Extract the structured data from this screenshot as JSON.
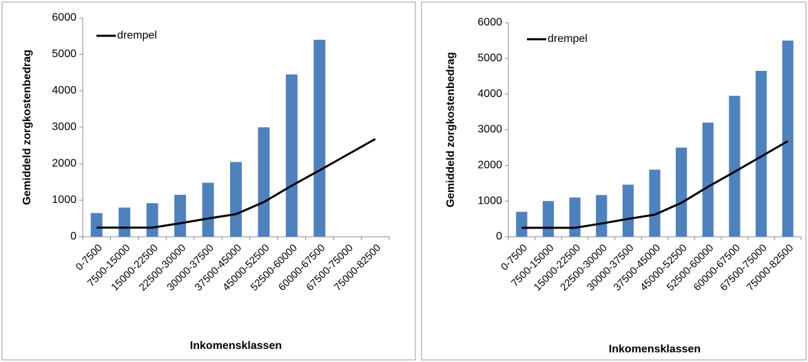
{
  "chart_data": [
    {
      "type": "bar",
      "x_label": "Inkomensklassen",
      "y_label": "Gemiddeld zorgkostenbedrag",
      "categories": [
        "0-7500",
        "7500-15000",
        "15000-22500",
        "22500-30000",
        "30000-37500",
        "37500-45000",
        "45000-52500",
        "52500-60000",
        "60000-67500",
        "67500-75000",
        "75000-82500"
      ],
      "series": [
        {
          "type": "bar",
          "color": "#4f81bd",
          "values": [
            650,
            800,
            920,
            1150,
            1480,
            2050,
            3000,
            4450,
            5400,
            null,
            null
          ]
        },
        {
          "type": "line",
          "name": "drempel",
          "color": "#000000",
          "values": [
            250,
            250,
            250,
            370,
            500,
            620,
            950,
            1400,
            1820,
            2250,
            2680
          ]
        }
      ],
      "ylim": [
        0,
        6000
      ],
      "yticks": [
        0,
        1000,
        2000,
        3000,
        4000,
        5000,
        6000
      ],
      "legend": "upper-left"
    },
    {
      "type": "bar",
      "x_label": "Inkomensklassen",
      "y_label": "Gemiddeld zorgkostenbedrag",
      "categories": [
        "0-7500",
        "7500-15000",
        "15000-22500",
        "22500-30000",
        "30000-37500",
        "37500-45000",
        "45000-52500",
        "52500-60000",
        "60000-67500",
        "67500-75000",
        "75000-82500"
      ],
      "series": [
        {
          "type": "bar",
          "color": "#4f81bd",
          "values": [
            700,
            1000,
            1100,
            1170,
            1460,
            1880,
            2500,
            3200,
            3950,
            4650,
            5500
          ]
        },
        {
          "type": "line",
          "name": "drempel",
          "color": "#000000",
          "values": [
            250,
            250,
            250,
            370,
            500,
            620,
            950,
            1400,
            1820,
            2250,
            2680
          ]
        }
      ],
      "ylim": [
        0,
        6000
      ],
      "yticks": [
        0,
        1000,
        2000,
        3000,
        4000,
        5000,
        6000
      ],
      "legend": "upper-left"
    }
  ]
}
